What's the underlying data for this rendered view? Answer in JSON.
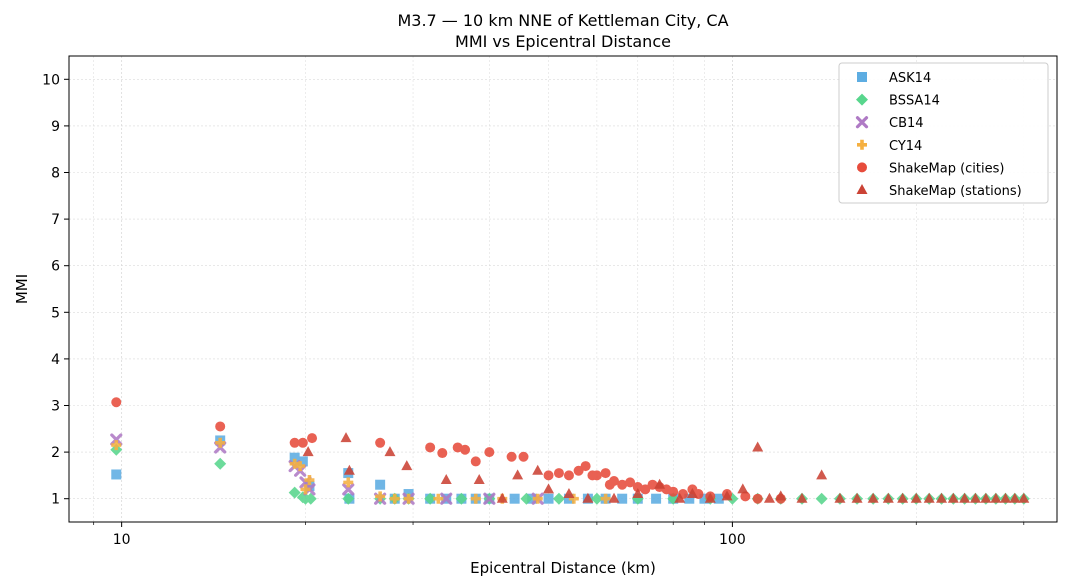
{
  "chart_data": {
    "type": "scatter",
    "title": "M3.7 — 10 km NNE of Kettleman City, CA",
    "subtitle": "MMI vs Epicentral Distance",
    "xlabel": "Epicentral Distance (km)",
    "ylabel": "MMI",
    "xscale": "log",
    "xlim": [
      8.2,
      340
    ],
    "ylim": [
      0.5,
      10.5
    ],
    "xticks": [
      10,
      100
    ],
    "xtick_labels": [
      "10",
      "100"
    ],
    "yticks": [
      1,
      2,
      3,
      4,
      5,
      6,
      7,
      8,
      9,
      10
    ],
    "ytick_labels": [
      "1",
      "2",
      "3",
      "4",
      "5",
      "6",
      "7",
      "8",
      "9",
      "10"
    ],
    "grid": true,
    "legend_position": "top-right",
    "series": [
      {
        "name": "ASK14",
        "marker": "square",
        "color": "#5DADE2",
        "x": [
          9.8,
          14.5,
          19.2,
          19.8,
          20.3,
          23.5,
          23.6,
          26.5,
          28,
          29.5,
          32,
          34,
          36,
          38,
          40,
          44,
          47,
          50,
          54,
          58,
          62,
          66,
          70,
          75,
          80,
          85,
          90,
          95
        ],
        "y": [
          1.52,
          2.25,
          1.88,
          1.8,
          1.27,
          1.55,
          1.0,
          1.3,
          1.0,
          1.1,
          1.0,
          1.0,
          1.0,
          1.0,
          1.0,
          1.0,
          1.0,
          1.0,
          1.0,
          1.0,
          1.0,
          1.0,
          1.0,
          1.0,
          1.0,
          1.0,
          1.0,
          1.0
        ]
      },
      {
        "name": "BSSA14",
        "marker": "diamond",
        "color": "#58D68D",
        "x": [
          9.8,
          14.5,
          19.2,
          19.8,
          20.0,
          20.4,
          23.5,
          26.5,
          28,
          29.5,
          32,
          36,
          40,
          46,
          52,
          60,
          70,
          80,
          92,
          100,
          110,
          120,
          130,
          140,
          150,
          160,
          170,
          180,
          190,
          200,
          210,
          220,
          230,
          240,
          250,
          260,
          270,
          280,
          290,
          300
        ],
        "y": [
          2.05,
          1.75,
          1.13,
          1.03,
          1.0,
          1.0,
          1.0,
          1.0,
          1.0,
          1.0,
          1.0,
          1.0,
          1.0,
          1.0,
          1.0,
          1.0,
          1.0,
          1.0,
          1.0,
          1.0,
          1.0,
          1.0,
          1.0,
          1.0,
          1.0,
          1.0,
          1.0,
          1.0,
          1.0,
          1.0,
          1.0,
          1.0,
          1.0,
          1.0,
          1.0,
          1.0,
          1.0,
          1.0,
          1.0,
          1.0
        ]
      },
      {
        "name": "CB14",
        "marker": "x",
        "color": "#AF7AC5",
        "x": [
          9.8,
          14.5,
          19.2,
          19.6,
          20.0,
          20.3,
          23.5,
          26.5,
          29.5,
          34,
          40,
          48
        ],
        "y": [
          2.27,
          2.1,
          1.7,
          1.6,
          1.35,
          1.2,
          1.2,
          1.0,
          1.0,
          1.0,
          1.0,
          1.0
        ]
      },
      {
        "name": "CY14",
        "marker": "plus",
        "color": "#F5B041",
        "x": [
          9.8,
          14.5,
          19.2,
          19.6,
          20.0,
          20.3,
          23.5,
          26.5,
          28,
          29.5,
          33,
          38,
          42,
          48,
          55,
          62
        ],
        "y": [
          2.15,
          2.2,
          1.75,
          1.7,
          1.2,
          1.4,
          1.35,
          1.05,
          1.0,
          1.0,
          1.0,
          1.0,
          1.0,
          1.0,
          1.0,
          1.0
        ]
      },
      {
        "name": "ShakeMap (cities)",
        "marker": "circle",
        "color": "#E74C3C",
        "x": [
          9.8,
          14.5,
          19.2,
          19.8,
          20.5,
          26.5,
          32,
          33.5,
          35.5,
          36.5,
          38,
          40,
          43.5,
          45.5,
          50,
          52,
          54,
          56,
          57.5,
          59,
          60,
          62,
          63,
          64,
          66,
          68,
          70,
          72,
          74,
          76,
          78,
          80,
          83,
          86,
          88,
          92,
          98,
          105,
          110,
          120
        ],
        "y": [
          3.07,
          2.55,
          2.2,
          2.2,
          2.3,
          2.2,
          2.1,
          1.98,
          2.1,
          2.05,
          1.8,
          2.0,
          1.9,
          1.9,
          1.5,
          1.55,
          1.5,
          1.6,
          1.7,
          1.5,
          1.5,
          1.55,
          1.3,
          1.38,
          1.3,
          1.35,
          1.25,
          1.2,
          1.3,
          1.25,
          1.2,
          1.15,
          1.1,
          1.2,
          1.1,
          1.05,
          1.1,
          1.05,
          1.0,
          1.0
        ]
      },
      {
        "name": "ShakeMap (stations)",
        "marker": "triangle",
        "color": "#CB4335",
        "x": [
          20.2,
          23.3,
          23.6,
          27.5,
          29.3,
          34,
          38.5,
          42,
          44.5,
          48,
          50,
          54,
          58,
          64,
          70,
          76,
          82,
          86,
          92,
          98,
          104,
          110,
          115,
          120,
          130,
          140,
          150,
          160,
          170,
          180,
          190,
          200,
          210,
          220,
          230,
          240,
          250,
          260,
          270,
          280,
          290,
          300
        ],
        "y": [
          2.0,
          2.3,
          1.6,
          2.0,
          1.7,
          1.4,
          1.4,
          1.0,
          1.5,
          1.6,
          1.2,
          1.1,
          1.0,
          1.0,
          1.1,
          1.3,
          1.0,
          1.1,
          1.0,
          1.05,
          1.2,
          2.1,
          1.0,
          1.05,
          1.0,
          1.5,
          1.0,
          1.0,
          1.0,
          1.0,
          1.0,
          1.0,
          1.0,
          1.0,
          1.0,
          1.0,
          1.0,
          1.0,
          1.0,
          1.0,
          1.0,
          1.0
        ]
      }
    ]
  }
}
